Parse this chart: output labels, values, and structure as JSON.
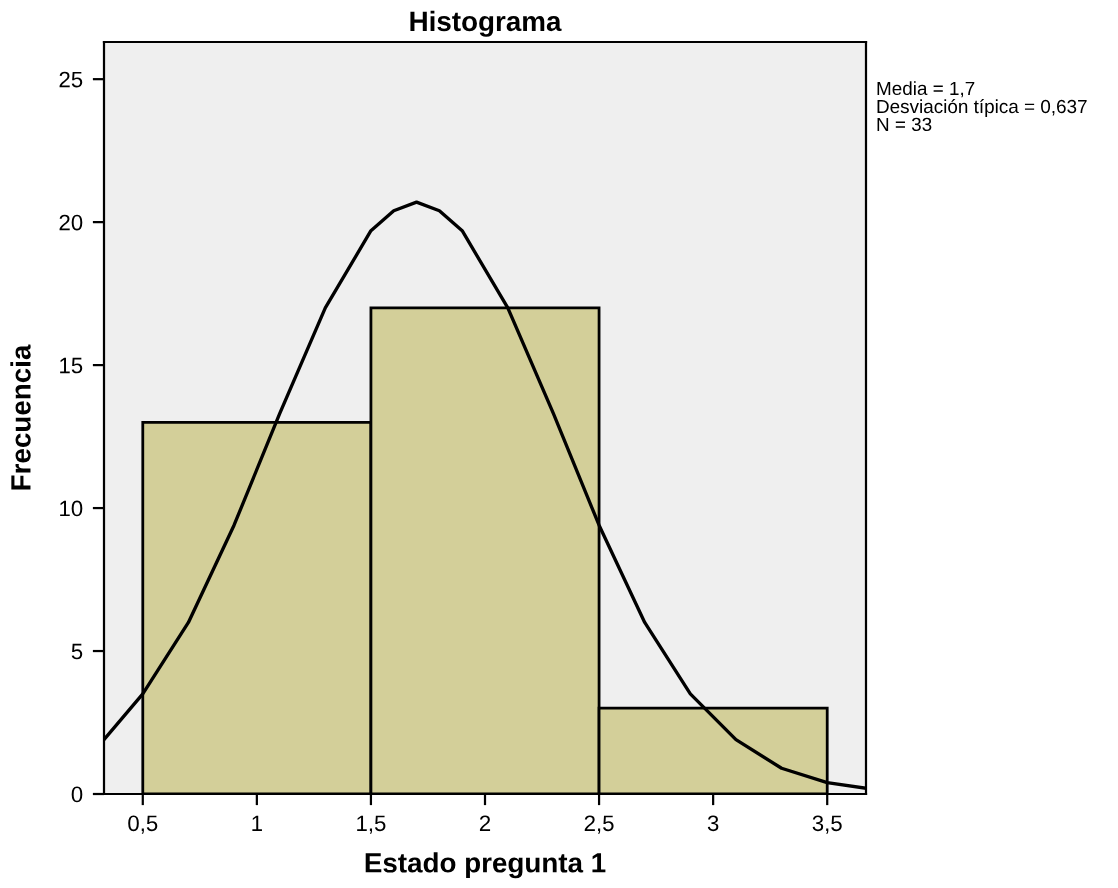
{
  "chart_data": {
    "type": "histogram",
    "title": "Histograma",
    "xlabel": "Estado pregunta 1",
    "ylabel": "Frecuencia",
    "series": [
      {
        "bins": [
          0.5,
          1.5,
          2.5,
          3.5
        ],
        "values": [
          13,
          17,
          3
        ],
        "color": "#d3cf99"
      },
      {
        "type": "line",
        "color": "#000000",
        "x": [
          0.33,
          0.5,
          0.7,
          0.9,
          1.1,
          1.3,
          1.5,
          1.6,
          1.7,
          1.8,
          1.9,
          2.1,
          2.3,
          2.5,
          2.7,
          2.9,
          3.1,
          3.3,
          3.5,
          3.67
        ],
        "values": [
          1.9,
          3.5,
          6.0,
          9.4,
          13.3,
          17.0,
          19.7,
          20.4,
          20.7,
          20.4,
          19.7,
          17.0,
          13.3,
          9.4,
          6.0,
          3.5,
          1.9,
          0.9,
          0.4,
          0.2
        ]
      }
    ],
    "xlim": [
      0.33,
      3.67
    ],
    "ylim": [
      0,
      26.3
    ],
    "xticks": [
      {
        "value": 0.5,
        "label": "0,5"
      },
      1,
      {
        "value": 1.5,
        "label": "1,5"
      },
      2,
      {
        "value": 2.5,
        "label": "2,5"
      },
      3,
      {
        "value": 3.5,
        "label": "3,5"
      }
    ],
    "yticks": [
      0,
      5,
      10,
      15,
      20,
      25
    ],
    "grid": false,
    "annotations": [
      "Media = 1,7",
      "Desviación típica = 0,637",
      "N = 33"
    ]
  }
}
